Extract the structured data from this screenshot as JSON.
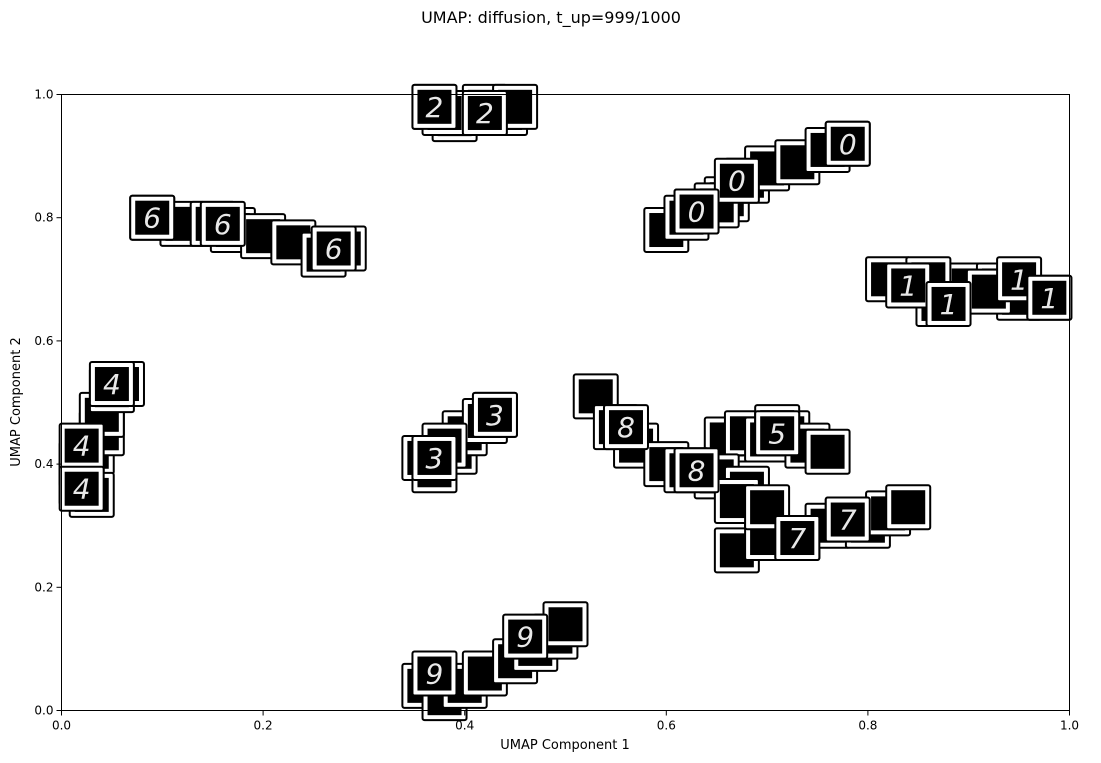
{
  "chart_data": {
    "type": "scatter",
    "title": "UMAP: diffusion, t_up=999/1000",
    "xlabel": "UMAP Component 1",
    "ylabel": "UMAP Component 2",
    "xlim": [
      0.0,
      1.0
    ],
    "ylim": [
      0.0,
      1.0
    ],
    "xticks": [
      "0.0",
      "0.2",
      "0.4",
      "0.6",
      "0.8",
      "1.0"
    ],
    "yticks": [
      "0.0",
      "0.2",
      "0.4",
      "0.6",
      "0.8",
      "1.0"
    ],
    "grid": false,
    "marker": "mnist-digit-thumbnail",
    "clusters": [
      {
        "digit": "0",
        "points": [
          [
            0.6,
            0.78
          ],
          [
            0.63,
            0.81
          ],
          [
            0.66,
            0.83
          ],
          [
            0.68,
            0.86
          ],
          [
            0.7,
            0.88
          ],
          [
            0.73,
            0.89
          ],
          [
            0.76,
            0.91
          ],
          [
            0.78,
            0.92
          ],
          [
            0.62,
            0.8
          ],
          [
            0.65,
            0.82
          ]
        ]
      },
      {
        "digit": "1",
        "points": [
          [
            0.82,
            0.7
          ],
          [
            0.85,
            0.69
          ],
          [
            0.87,
            0.66
          ],
          [
            0.9,
            0.69
          ],
          [
            0.93,
            0.69
          ],
          [
            0.95,
            0.67
          ],
          [
            0.98,
            0.67
          ],
          [
            0.86,
            0.7
          ],
          [
            0.92,
            0.68
          ]
        ]
      },
      {
        "digit": "2",
        "points": [
          [
            0.37,
            0.98
          ],
          [
            0.39,
            0.96
          ],
          [
            0.41,
            0.97
          ],
          [
            0.42,
            0.98
          ],
          [
            0.44,
            0.97
          ],
          [
            0.45,
            0.98
          ],
          [
            0.38,
            0.97
          ]
        ]
      },
      {
        "digit": "3",
        "points": [
          [
            0.36,
            0.41
          ],
          [
            0.37,
            0.39
          ],
          [
            0.39,
            0.42
          ],
          [
            0.4,
            0.45
          ],
          [
            0.42,
            0.47
          ],
          [
            0.43,
            0.48
          ],
          [
            0.38,
            0.43
          ]
        ]
      },
      {
        "digit": "4",
        "points": [
          [
            0.02,
            0.4
          ],
          [
            0.03,
            0.42
          ],
          [
            0.04,
            0.45
          ],
          [
            0.04,
            0.48
          ],
          [
            0.05,
            0.52
          ],
          [
            0.06,
            0.53
          ],
          [
            0.02,
            0.37
          ],
          [
            0.03,
            0.35
          ]
        ]
      },
      {
        "digit": "5",
        "points": [
          [
            0.66,
            0.44
          ],
          [
            0.68,
            0.45
          ],
          [
            0.7,
            0.44
          ],
          [
            0.72,
            0.45
          ],
          [
            0.74,
            0.43
          ],
          [
            0.76,
            0.42
          ],
          [
            0.71,
            0.46
          ]
        ]
      },
      {
        "digit": "6",
        "points": [
          [
            0.09,
            0.8
          ],
          [
            0.12,
            0.79
          ],
          [
            0.15,
            0.79
          ],
          [
            0.17,
            0.78
          ],
          [
            0.2,
            0.77
          ],
          [
            0.23,
            0.76
          ],
          [
            0.26,
            0.74
          ],
          [
            0.28,
            0.75
          ]
        ]
      },
      {
        "digit": "7",
        "points": [
          [
            0.67,
            0.26
          ],
          [
            0.7,
            0.28
          ],
          [
            0.73,
            0.28
          ],
          [
            0.76,
            0.3
          ],
          [
            0.78,
            0.31
          ],
          [
            0.8,
            0.3
          ],
          [
            0.82,
            0.32
          ],
          [
            0.84,
            0.33
          ]
        ]
      },
      {
        "digit": "8",
        "points": [
          [
            0.53,
            0.51
          ],
          [
            0.55,
            0.46
          ],
          [
            0.57,
            0.43
          ],
          [
            0.6,
            0.4
          ],
          [
            0.62,
            0.39
          ],
          [
            0.65,
            0.38
          ],
          [
            0.68,
            0.36
          ],
          [
            0.67,
            0.34
          ],
          [
            0.7,
            0.33
          ]
        ]
      },
      {
        "digit": "9",
        "points": [
          [
            0.36,
            0.04
          ],
          [
            0.38,
            0.02
          ],
          [
            0.4,
            0.04
          ],
          [
            0.42,
            0.06
          ],
          [
            0.45,
            0.08
          ],
          [
            0.47,
            0.1
          ],
          [
            0.49,
            0.12
          ],
          [
            0.5,
            0.14
          ]
        ]
      }
    ],
    "labeled_thumbnails": [
      {
        "digit": "0",
        "x": 0.78,
        "y": 0.92
      },
      {
        "digit": "0",
        "x": 0.67,
        "y": 0.86
      },
      {
        "digit": "0",
        "x": 0.63,
        "y": 0.81
      },
      {
        "digit": "1",
        "x": 0.84,
        "y": 0.69
      },
      {
        "digit": "1",
        "x": 0.88,
        "y": 0.66
      },
      {
        "digit": "1",
        "x": 0.95,
        "y": 0.7
      },
      {
        "digit": "1",
        "x": 0.98,
        "y": 0.67
      },
      {
        "digit": "2",
        "x": 0.37,
        "y": 0.98
      },
      {
        "digit": "2",
        "x": 0.42,
        "y": 0.97
      },
      {
        "digit": "3",
        "x": 0.43,
        "y": 0.48
      },
      {
        "digit": "3",
        "x": 0.37,
        "y": 0.41
      },
      {
        "digit": "4",
        "x": 0.05,
        "y": 0.53
      },
      {
        "digit": "4",
        "x": 0.02,
        "y": 0.43
      },
      {
        "digit": "4",
        "x": 0.02,
        "y": 0.36
      },
      {
        "digit": "5",
        "x": 0.71,
        "y": 0.45
      },
      {
        "digit": "6",
        "x": 0.09,
        "y": 0.8
      },
      {
        "digit": "6",
        "x": 0.16,
        "y": 0.79
      },
      {
        "digit": "6",
        "x": 0.27,
        "y": 0.75
      },
      {
        "digit": "7",
        "x": 0.73,
        "y": 0.28
      },
      {
        "digit": "7",
        "x": 0.78,
        "y": 0.31
      },
      {
        "digit": "8",
        "x": 0.56,
        "y": 0.46
      },
      {
        "digit": "8",
        "x": 0.63,
        "y": 0.39
      },
      {
        "digit": "9",
        "x": 0.46,
        "y": 0.12
      },
      {
        "digit": "9",
        "x": 0.37,
        "y": 0.06
      }
    ]
  }
}
